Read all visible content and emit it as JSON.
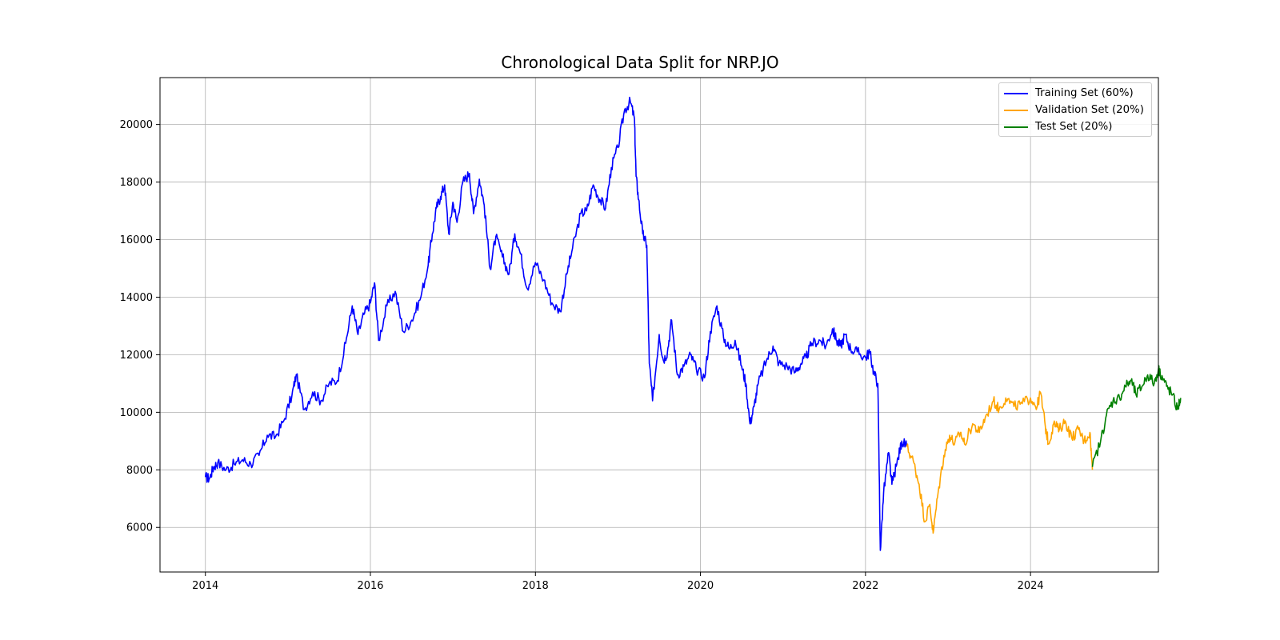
{
  "chart_data": {
    "type": "line",
    "title": "Chronological Data Split for NRP.JO",
    "xlabel": "",
    "ylabel": "",
    "xlim": [
      2013.45,
      2025.55
    ],
    "ylim": [
      4450,
      21630
    ],
    "xticks": [
      "2014",
      "2016",
      "2018",
      "2020",
      "2022",
      "2024"
    ],
    "yticks": [
      "6000",
      "8000",
      "10000",
      "12000",
      "14000",
      "16000",
      "18000",
      "20000"
    ],
    "grid": true,
    "legend_position": "top-right",
    "series": [
      {
        "name": "Training Set (60%)",
        "color": "#0000ff",
        "points": [
          [
            2014.0,
            7750
          ],
          [
            2014.05,
            7700
          ],
          [
            2014.1,
            8100
          ],
          [
            2014.15,
            8250
          ],
          [
            2014.25,
            8000
          ],
          [
            2014.35,
            8200
          ],
          [
            2014.45,
            8350
          ],
          [
            2014.55,
            8200
          ],
          [
            2014.65,
            8500
          ],
          [
            2014.75,
            9200
          ],
          [
            2014.85,
            9150
          ],
          [
            2014.95,
            9700
          ],
          [
            2015.05,
            10600
          ],
          [
            2015.1,
            11300
          ],
          [
            2015.2,
            10100
          ],
          [
            2015.3,
            10700
          ],
          [
            2015.4,
            10400
          ],
          [
            2015.5,
            11000
          ],
          [
            2015.6,
            11100
          ],
          [
            2015.7,
            12400
          ],
          [
            2015.78,
            13700
          ],
          [
            2015.85,
            12700
          ],
          [
            2015.92,
            13400
          ],
          [
            2016.0,
            13800
          ],
          [
            2016.05,
            14500
          ],
          [
            2016.1,
            12500
          ],
          [
            2016.2,
            13700
          ],
          [
            2016.3,
            14200
          ],
          [
            2016.4,
            12800
          ],
          [
            2016.5,
            13200
          ],
          [
            2016.6,
            13900
          ],
          [
            2016.7,
            15100
          ],
          [
            2016.75,
            16200
          ],
          [
            2016.8,
            17100
          ],
          [
            2016.85,
            17500
          ],
          [
            2016.9,
            17900
          ],
          [
            2016.95,
            16200
          ],
          [
            2017.0,
            17300
          ],
          [
            2017.05,
            16600
          ],
          [
            2017.12,
            18000
          ],
          [
            2017.2,
            18300
          ],
          [
            2017.25,
            16900
          ],
          [
            2017.32,
            18100
          ],
          [
            2017.38,
            17200
          ],
          [
            2017.45,
            15000
          ],
          [
            2017.52,
            16100
          ],
          [
            2017.6,
            15400
          ],
          [
            2017.68,
            14800
          ],
          [
            2017.75,
            16200
          ],
          [
            2017.82,
            15500
          ],
          [
            2017.9,
            14300
          ],
          [
            2018.0,
            15200
          ],
          [
            2018.1,
            14600
          ],
          [
            2018.2,
            13800
          ],
          [
            2018.3,
            13500
          ],
          [
            2018.38,
            14800
          ],
          [
            2018.45,
            15700
          ],
          [
            2018.55,
            16900
          ],
          [
            2018.62,
            17000
          ],
          [
            2018.7,
            17900
          ],
          [
            2018.78,
            17400
          ],
          [
            2018.85,
            17100
          ],
          [
            2018.92,
            18500
          ],
          [
            2019.0,
            19200
          ],
          [
            2019.08,
            20500
          ],
          [
            2019.15,
            20800
          ],
          [
            2019.2,
            20200
          ],
          [
            2019.22,
            18200
          ],
          [
            2019.25,
            17400
          ],
          [
            2019.3,
            16200
          ],
          [
            2019.35,
            15800
          ],
          [
            2019.38,
            11700
          ],
          [
            2019.42,
            10400
          ],
          [
            2019.5,
            12700
          ],
          [
            2019.55,
            11800
          ],
          [
            2019.6,
            12100
          ],
          [
            2019.65,
            13200
          ],
          [
            2019.72,
            11300
          ],
          [
            2019.8,
            11600
          ],
          [
            2019.88,
            12000
          ],
          [
            2019.95,
            11500
          ],
          [
            2020.05,
            11200
          ],
          [
            2020.12,
            12800
          ],
          [
            2020.2,
            13700
          ],
          [
            2020.28,
            12600
          ],
          [
            2020.35,
            12200
          ],
          [
            2020.42,
            12500
          ],
          [
            2020.5,
            11600
          ],
          [
            2020.55,
            11000
          ],
          [
            2020.6,
            9600
          ],
          [
            2020.65,
            10200
          ],
          [
            2020.7,
            11000
          ],
          [
            2020.8,
            11800
          ],
          [
            2020.88,
            12300
          ],
          [
            2020.95,
            11700
          ],
          [
            2021.05,
            11600
          ],
          [
            2021.15,
            11400
          ],
          [
            2021.22,
            11700
          ],
          [
            2021.28,
            11900
          ],
          [
            2021.35,
            12400
          ],
          [
            2021.45,
            12500
          ],
          [
            2021.52,
            12300
          ],
          [
            2021.6,
            12900
          ],
          [
            2021.65,
            12500
          ],
          [
            2021.7,
            12300
          ],
          [
            2021.75,
            12700
          ],
          [
            2021.82,
            12200
          ],
          [
            2021.9,
            12100
          ],
          [
            2022.0,
            11900
          ],
          [
            2022.05,
            12100
          ],
          [
            2022.1,
            11400
          ],
          [
            2022.15,
            11000
          ],
          [
            2022.18,
            5200
          ],
          [
            2022.22,
            7200
          ],
          [
            2022.28,
            8600
          ],
          [
            2022.32,
            7500
          ],
          [
            2022.38,
            8200
          ],
          [
            2022.44,
            9000
          ],
          [
            2022.5,
            8800
          ]
        ]
      },
      {
        "name": "Validation Set (20%)",
        "color": "#ffa500",
        "points": [
          [
            2022.5,
            8800
          ],
          [
            2022.58,
            8300
          ],
          [
            2022.65,
            7500
          ],
          [
            2022.72,
            6200
          ],
          [
            2022.78,
            6800
          ],
          [
            2022.82,
            5800
          ],
          [
            2022.88,
            7200
          ],
          [
            2022.95,
            8500
          ],
          [
            2023.02,
            9200
          ],
          [
            2023.08,
            8900
          ],
          [
            2023.15,
            9300
          ],
          [
            2023.2,
            8900
          ],
          [
            2023.3,
            9600
          ],
          [
            2023.38,
            9300
          ],
          [
            2023.45,
            9800
          ],
          [
            2023.55,
            10400
          ],
          [
            2023.62,
            10100
          ],
          [
            2023.7,
            10500
          ],
          [
            2023.8,
            10200
          ],
          [
            2023.9,
            10300
          ],
          [
            2024.0,
            10500
          ],
          [
            2024.08,
            10200
          ],
          [
            2024.12,
            10700
          ],
          [
            2024.18,
            9500
          ],
          [
            2024.22,
            8900
          ],
          [
            2024.28,
            9600
          ],
          [
            2024.35,
            9400
          ],
          [
            2024.42,
            9700
          ],
          [
            2024.5,
            9100
          ],
          [
            2024.58,
            9400
          ],
          [
            2024.65,
            9000
          ],
          [
            2024.72,
            9300
          ],
          [
            2024.75,
            8000
          ]
        ]
      },
      {
        "name": "Test Set (20%)",
        "color": "#008000",
        "points": [
          [
            2024.75,
            8100
          ],
          [
            2024.85,
            9000
          ],
          [
            2024.92,
            9900
          ],
          [
            2025.0,
            10400
          ],
          [
            2025.08,
            10500
          ],
          [
            2025.15,
            10900
          ],
          [
            2025.22,
            11100
          ],
          [
            2025.28,
            10600
          ],
          [
            2025.35,
            10900
          ],
          [
            2025.42,
            11300
          ],
          [
            2025.5,
            11000
          ],
          [
            2025.55,
            11500
          ],
          [
            2025.6,
            11200
          ],
          [
            2025.65,
            10900
          ],
          [
            2025.72,
            10600
          ],
          [
            2025.78,
            10100
          ],
          [
            2025.82,
            10500
          ]
        ]
      }
    ]
  }
}
